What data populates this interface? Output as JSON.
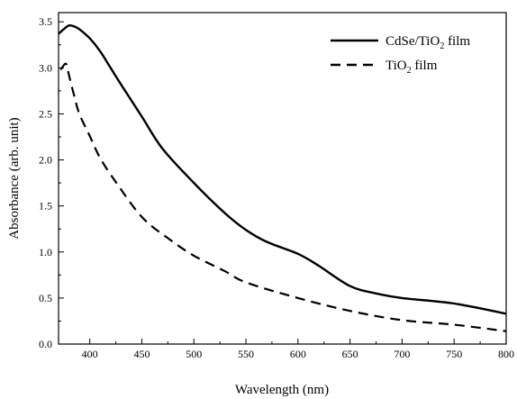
{
  "chart_data": {
    "type": "line",
    "xlabel": "Wavelength (nm)",
    "ylabel": "Absorbance (arb. unit)",
    "xlim": [
      370,
      800
    ],
    "ylim": [
      0.0,
      3.6
    ],
    "x_ticks": [
      400,
      450,
      500,
      550,
      600,
      650,
      700,
      750,
      800
    ],
    "x_tick_labels": [
      "400",
      "450",
      "500",
      "550",
      "600",
      "650",
      "700",
      "750",
      "800"
    ],
    "y_ticks": [
      0.0,
      0.5,
      1.0,
      1.5,
      2.0,
      2.5,
      3.0,
      3.5
    ],
    "y_tick_labels": [
      "0.0",
      "0.5",
      "1.0",
      "1.5",
      "2.0",
      "2.5",
      "3.0",
      "3.5"
    ],
    "grid": false,
    "legend_position": "top-right",
    "series": [
      {
        "name_main": "CdSe/TiO",
        "name_sub": "2",
        "name_tail": " film",
        "line_style": "solid",
        "color": "#000000",
        "x": [
          370,
          375,
          380,
          385,
          390,
          400,
          410,
          420,
          430,
          450,
          470,
          500,
          530,
          550,
          570,
          600,
          620,
          650,
          675,
          700,
          750,
          800
        ],
        "y": [
          3.37,
          3.42,
          3.46,
          3.45,
          3.42,
          3.32,
          3.18,
          3.0,
          2.82,
          2.47,
          2.12,
          1.75,
          1.42,
          1.24,
          1.11,
          0.98,
          0.85,
          0.63,
          0.55,
          0.5,
          0.44,
          0.33
        ]
      },
      {
        "name_main": "TiO",
        "name_sub": "2",
        "name_tail": " film",
        "line_style": "dashed",
        "color": "#000000",
        "x": [
          372,
          376,
          378,
          380,
          385,
          390,
          400,
          410,
          425,
          450,
          475,
          500,
          530,
          550,
          600,
          650,
          700,
          750,
          800
        ],
        "y": [
          2.98,
          3.04,
          3.03,
          2.92,
          2.7,
          2.5,
          2.26,
          2.02,
          1.76,
          1.38,
          1.15,
          0.96,
          0.79,
          0.67,
          0.5,
          0.36,
          0.26,
          0.21,
          0.14
        ]
      }
    ]
  }
}
